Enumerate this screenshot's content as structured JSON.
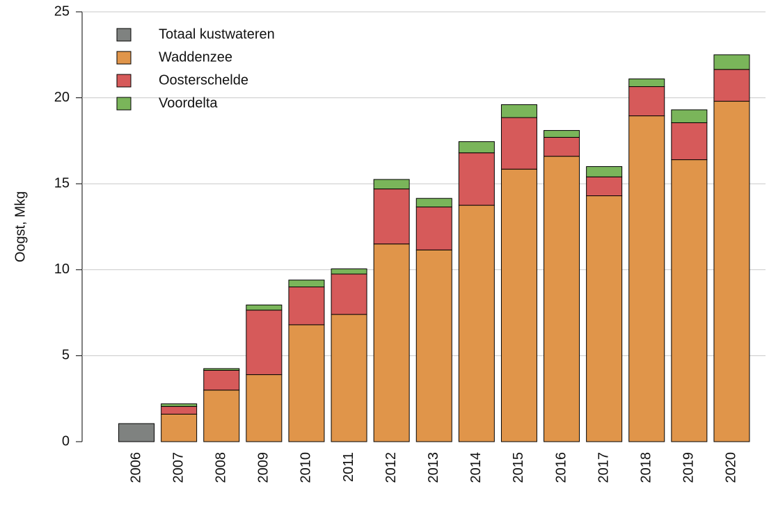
{
  "chart_data": {
    "type": "stacked_bar",
    "y_label": "Oogst, Mkg",
    "categories": [
      "2006",
      "2007",
      "2008",
      "2009",
      "2010",
      "2011",
      "2012",
      "2013",
      "2014",
      "2015",
      "2016",
      "2017",
      "2018",
      "2019",
      "2020"
    ],
    "series": [
      {
        "name": "Totaal kustwateren",
        "color": "#7f8280",
        "values": [
          1.05,
          null,
          null,
          null,
          null,
          null,
          null,
          null,
          null,
          null,
          null,
          null,
          null,
          null,
          null
        ]
      },
      {
        "name": "Waddenzee",
        "color": "#e0954a",
        "values": [
          null,
          1.6,
          3.0,
          3.9,
          6.8,
          7.4,
          11.5,
          11.15,
          13.75,
          15.85,
          16.6,
          14.3,
          18.95,
          16.4,
          19.8
        ]
      },
      {
        "name": "Oosterschelde",
        "color": "#d65a5a",
        "values": [
          null,
          0.45,
          1.15,
          3.75,
          2.2,
          2.35,
          3.2,
          2.5,
          3.05,
          3.0,
          1.1,
          1.1,
          1.7,
          2.15,
          1.85
        ]
      },
      {
        "name": "Voordelta",
        "color": "#7ab55a",
        "values": [
          null,
          0.15,
          0.1,
          0.3,
          0.4,
          0.3,
          0.55,
          0.5,
          0.65,
          0.75,
          0.4,
          0.6,
          0.45,
          0.75,
          0.85
        ]
      }
    ],
    "ylim": [
      0,
      25
    ],
    "yticks": [
      0,
      5,
      10,
      15,
      20,
      25
    ],
    "grid": true,
    "legend": "top-left"
  }
}
